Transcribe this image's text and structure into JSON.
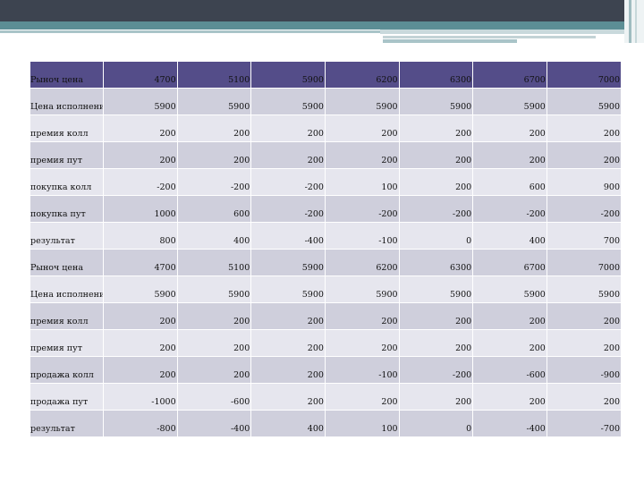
{
  "table": {
    "rows": [
      {
        "label": "Рыноч цена",
        "values": [
          "4700",
          "5100",
          "5900",
          "6200",
          "6300",
          "6700",
          "7000"
        ]
      },
      {
        "label": "Цена исполнения",
        "values": [
          "5900",
          "5900",
          "5900",
          "5900",
          "5900",
          "5900",
          "5900"
        ]
      },
      {
        "label": "премия колл",
        "values": [
          "200",
          "200",
          "200",
          "200",
          "200",
          "200",
          "200"
        ]
      },
      {
        "label": "премия пут",
        "values": [
          "200",
          "200",
          "200",
          "200",
          "200",
          "200",
          "200"
        ]
      },
      {
        "label": "покупка колл",
        "values": [
          "-200",
          "-200",
          "-200",
          "100",
          "200",
          "600",
          "900"
        ]
      },
      {
        "label": "покупка пут",
        "values": [
          "1000",
          "600",
          "-200",
          "-200",
          "-200",
          "-200",
          "-200"
        ]
      },
      {
        "label": "результат",
        "values": [
          "800",
          "400",
          "-400",
          "-100",
          "0",
          "400",
          "700"
        ]
      },
      {
        "label": "Рыноч цена",
        "values": [
          "4700",
          "5100",
          "5900",
          "6200",
          "6300",
          "6700",
          "7000"
        ]
      },
      {
        "label": "Цена исполнения",
        "values": [
          "5900",
          "5900",
          "5900",
          "5900",
          "5900",
          "5900",
          "5900"
        ]
      },
      {
        "label": "премия колл",
        "values": [
          "200",
          "200",
          "200",
          "200",
          "200",
          "200",
          "200"
        ]
      },
      {
        "label": "премия пут",
        "values": [
          "200",
          "200",
          "200",
          "200",
          "200",
          "200",
          "200"
        ]
      },
      {
        "label": "продажа колл",
        "values": [
          "200",
          "200",
          "200",
          "-100",
          "-200",
          "-600",
          "-900"
        ]
      },
      {
        "label": "продажа пут",
        "values": [
          "-1000",
          "-600",
          "200",
          "200",
          "200",
          "200",
          "200"
        ]
      },
      {
        "label": "результат",
        "values": [
          "-800",
          "-400",
          "400",
          "100",
          "0",
          "-400",
          "-700"
        ]
      }
    ]
  },
  "colors": {
    "header_row": "#544d89",
    "row_dark": "#cfcfdc",
    "row_light": "#e6e6ee",
    "top_bar": "#3d4450",
    "teal_band": "#5c8e95"
  }
}
